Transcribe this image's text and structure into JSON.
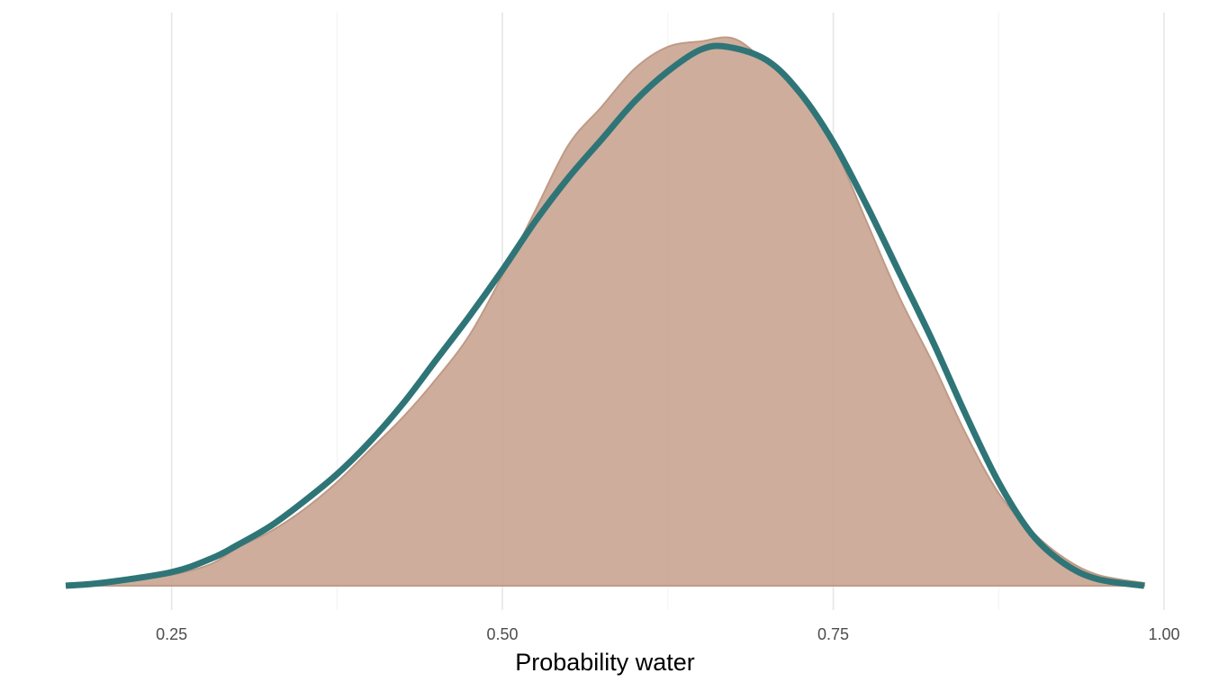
{
  "chart_data": {
    "type": "area",
    "title": "",
    "xlabel": "Probability water",
    "ylabel": "",
    "xlim": [
      0.17,
      1.0
    ],
    "ylim": [
      0,
      1.02
    ],
    "x_ticks": [
      {
        "value": 0.25,
        "label": "0.25"
      },
      {
        "value": 0.5,
        "label": "0.50"
      },
      {
        "value": 0.75,
        "label": "0.75"
      },
      {
        "value": 1.0,
        "label": "1.00"
      }
    ],
    "x_minor_gridlines": [
      0.375,
      0.625,
      0.875
    ],
    "grid": "vertical only",
    "legend": "none",
    "series": [
      {
        "kind": "density-area",
        "color": "#c8a28e",
        "outline_color": "#bf9a86",
        "x": [
          0.17,
          0.2,
          0.25,
          0.28,
          0.3,
          0.325,
          0.35,
          0.375,
          0.4,
          0.425,
          0.45,
          0.475,
          0.5,
          0.525,
          0.55,
          0.575,
          0.6,
          0.625,
          0.65,
          0.675,
          0.7,
          0.725,
          0.75,
          0.775,
          0.8,
          0.825,
          0.85,
          0.875,
          0.9,
          0.925,
          0.95,
          0.985
        ],
        "y": [
          0.0,
          0.005,
          0.02,
          0.04,
          0.07,
          0.1,
          0.14,
          0.19,
          0.25,
          0.31,
          0.38,
          0.46,
          0.57,
          0.69,
          0.81,
          0.88,
          0.95,
          0.99,
          1.0,
          1.005,
          0.96,
          0.91,
          0.81,
          0.67,
          0.53,
          0.41,
          0.28,
          0.17,
          0.1,
          0.05,
          0.02,
          0.005
        ]
      },
      {
        "kind": "analytic-curve",
        "color": "#2f7577",
        "x": [
          0.17,
          0.2,
          0.25,
          0.28,
          0.3,
          0.325,
          0.35,
          0.375,
          0.4,
          0.425,
          0.45,
          0.475,
          0.5,
          0.525,
          0.55,
          0.575,
          0.6,
          0.625,
          0.65,
          0.67,
          0.7,
          0.725,
          0.75,
          0.775,
          0.8,
          0.825,
          0.85,
          0.875,
          0.9,
          0.925,
          0.95,
          0.985
        ],
        "y": [
          0.0,
          0.006,
          0.025,
          0.05,
          0.075,
          0.11,
          0.155,
          0.205,
          0.265,
          0.335,
          0.415,
          0.495,
          0.58,
          0.67,
          0.75,
          0.82,
          0.89,
          0.945,
          0.985,
          0.99,
          0.965,
          0.905,
          0.815,
          0.7,
          0.575,
          0.45,
          0.315,
          0.19,
          0.095,
          0.04,
          0.012,
          0.0
        ]
      }
    ]
  }
}
